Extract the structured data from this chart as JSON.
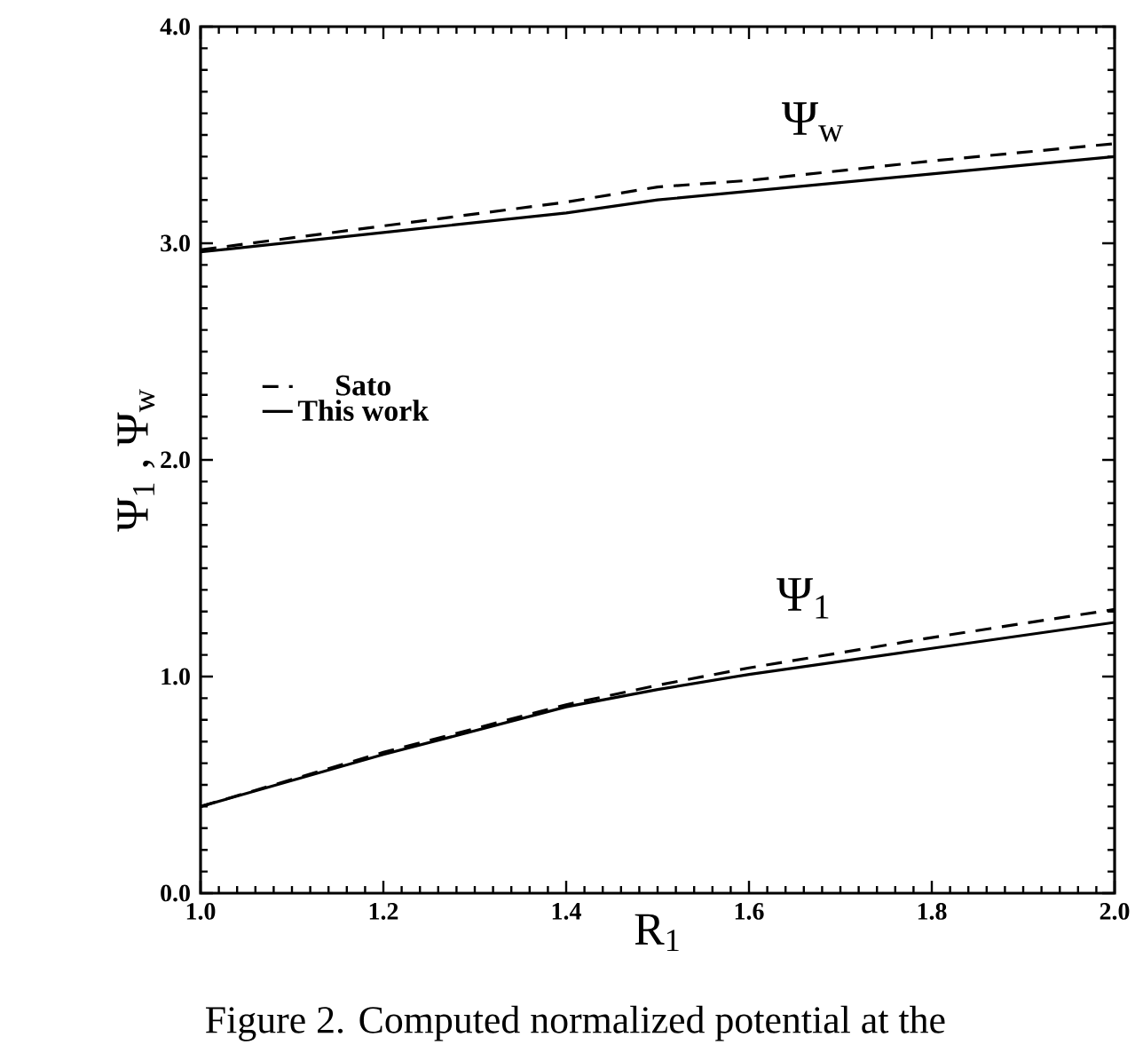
{
  "chart_data": {
    "type": "line",
    "xlabel": "R$_{1}$",
    "ylabel": "Ψ$_{1}$ , Ψ$_{w}$",
    "x": [
      1.0,
      1.2,
      1.4,
      1.5,
      1.6,
      1.8,
      2.0
    ],
    "series": [
      {
        "name": "Sato",
        "color": "#000000",
        "line_style": "dashed",
        "values": [
          2.97,
          3.08,
          3.19,
          3.26,
          3.29,
          3.38,
          3.46
        ]
      },
      {
        "name": "This work",
        "color": "#000000",
        "line_style": "solid",
        "values": [
          2.96,
          3.05,
          3.14,
          3.2,
          3.24,
          3.32,
          3.4
        ]
      },
      {
        "color": "#000000",
        "line_style": "dashed",
        "values": [
          0.4,
          0.65,
          0.87,
          0.96,
          1.04,
          1.18,
          1.31
        ]
      },
      {
        "color": "#000000",
        "line_style": "solid",
        "values": [
          0.4,
          0.64,
          0.86,
          0.94,
          1.01,
          1.13,
          1.25
        ]
      }
    ],
    "xlim": [
      1.0,
      2.0
    ],
    "xticks": [
      {
        "value": 1.0,
        "label": "1.0"
      },
      1.2,
      1.4,
      1.6,
      1.8,
      {
        "value": 2.0,
        "label": "2.0"
      }
    ],
    "ylim": [
      0.0,
      4.0
    ],
    "yticks": [
      {
        "value": 0.0,
        "label": "0.0"
      },
      {
        "value": 1.0,
        "label": "1.0"
      },
      {
        "value": 2.0,
        "label": "2.0"
      },
      {
        "value": 3.0,
        "label": "3.0"
      },
      {
        "value": 4.0,
        "label": "4.0"
      }
    ],
    "grid": false,
    "legend": "left",
    "marker": "none",
    "annotations": [
      "Ψ$_{w}$",
      "Ψ$_{1}$",
      "Figure 2. Computed normalized potential at the"
    ]
  }
}
